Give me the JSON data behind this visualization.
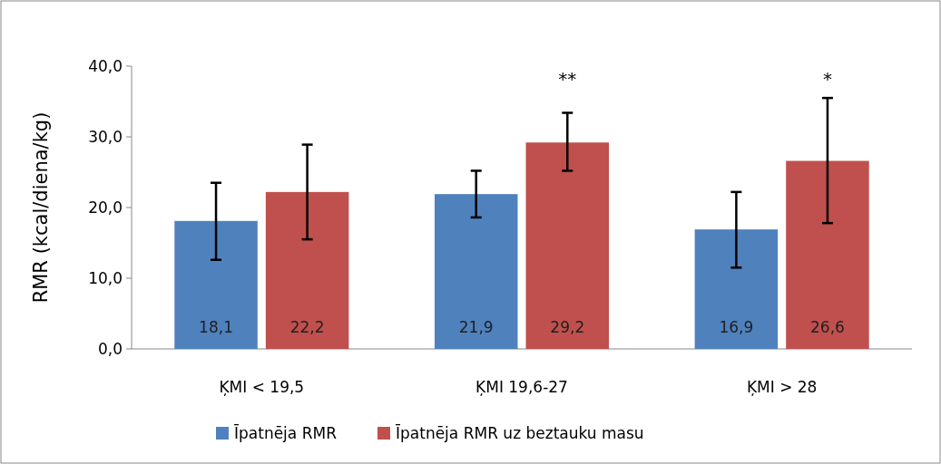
{
  "chart_data": {
    "type": "bar",
    "ylabel": "RMR (kcal/diena/kg)",
    "categories": [
      "ĶMI < 19,5",
      "ĶMI 19,6-27",
      "ĶMI > 28"
    ],
    "series": [
      {
        "name": "Īpatnēja RMR",
        "color": "#4f81bd",
        "values": [
          18.1,
          21.9,
          16.9
        ],
        "value_labels": [
          "18,1",
          "21,9",
          "16,9"
        ],
        "errors": [
          [
            12.6,
            23.5
          ],
          [
            18.6,
            25.2
          ],
          [
            11.5,
            22.2
          ]
        ]
      },
      {
        "name": "Īpatnēja RMR uz beztauku masu",
        "color": "#c0504d",
        "values": [
          22.2,
          29.2,
          26.6
        ],
        "value_labels": [
          "22,2",
          "29,2",
          "26,6"
        ],
        "errors": [
          [
            15.5,
            28.9
          ],
          [
            25.2,
            33.4
          ],
          [
            17.8,
            35.5
          ]
        ]
      }
    ],
    "ylim": [
      0,
      40
    ],
    "yticks": [
      {
        "value": 0,
        "label": "0,0"
      },
      {
        "value": 10,
        "label": "10,0"
      },
      {
        "value": 20,
        "label": "20,0"
      },
      {
        "value": 30,
        "label": "30,0"
      },
      {
        "value": 40,
        "label": "40,0"
      }
    ],
    "legend": "bottom",
    "annotations": [
      "**",
      "*"
    ]
  }
}
